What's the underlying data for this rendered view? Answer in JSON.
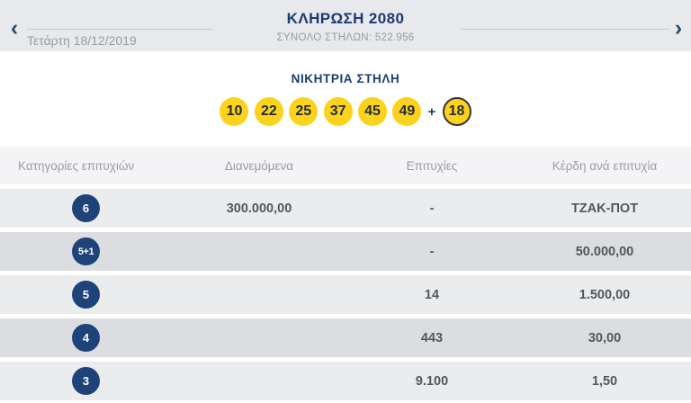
{
  "header": {
    "title": "ΚΛΗΡΩΣΗ 2080",
    "subtitle": "ΣΥΝΟΛΟ ΣΤΗΛΩΝ: 522.956",
    "date": "Τετάρτη 18/12/2019",
    "prev_arrow": "‹",
    "next_arrow": "›"
  },
  "winning": {
    "heading": "ΝΙΚΗΤΡΙΑ ΣΤΗΛΗ",
    "numbers": [
      "10",
      "22",
      "25",
      "37",
      "45",
      "49"
    ],
    "plus": "+",
    "bonus": "18"
  },
  "table": {
    "headers": {
      "category": "Κατηγορίες επιτυχιών",
      "distributed": "Διανεμόμενα",
      "winners": "Επιτυχίες",
      "prize": "Κέρδη ανά επιτυχία"
    },
    "rows": [
      {
        "category": "6",
        "distributed": "300.000,00",
        "winners": "-",
        "prize": "ΤΖΑΚ-ΠΟΤ"
      },
      {
        "category": "5+1",
        "distributed": "",
        "winners": "-",
        "prize": "50.000,00"
      },
      {
        "category": "5",
        "distributed": "",
        "winners": "14",
        "prize": "1.500,00"
      },
      {
        "category": "4",
        "distributed": "",
        "winners": "443",
        "prize": "30,00"
      },
      {
        "category": "3",
        "distributed": "",
        "winners": "9.100",
        "prize": "1,50"
      }
    ]
  },
  "colors": {
    "brand_navy": "#1c3a72",
    "circle_navy": "#1e4378",
    "ball_yellow": "#fcd31c",
    "header_strip_bg": "#e7e9ec",
    "table_header_bg": "#f4f4f6",
    "row_light_bg": "#ebeced",
    "row_dark_bg": "#dcdde0",
    "muted_text": "#9a9da4",
    "value_text": "#54565b"
  }
}
